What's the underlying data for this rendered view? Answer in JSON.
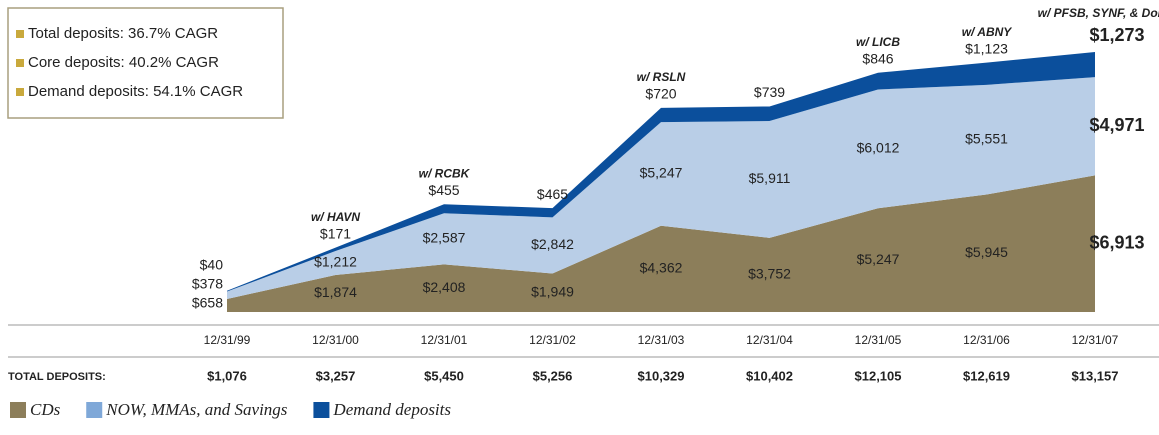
{
  "chart_data": {
    "type": "stacked_area",
    "x": [
      "12/31/99",
      "12/31/00",
      "12/31/01",
      "12/31/02",
      "12/31/03",
      "12/31/04",
      "12/31/05",
      "12/31/06",
      "12/31/07"
    ],
    "series": [
      {
        "name": "CDs",
        "color": "#8c7e5a",
        "values": [
          658,
          1874,
          2408,
          1949,
          4362,
          3752,
          5247,
          5945,
          6913
        ],
        "value_labels": [
          "$658",
          "$1,874",
          "$2,408",
          "$1,949",
          "$4,362",
          "$3,752",
          "$5,247",
          "$5,945",
          "$6,913"
        ]
      },
      {
        "name": "NOW, MMAs, and Savings",
        "color": "#b9cee7",
        "values": [
          378,
          1212,
          2587,
          2842,
          5247,
          5911,
          6012,
          5551,
          4971
        ],
        "value_labels": [
          "$378",
          "$1,212",
          "$2,587",
          "$2,842",
          "$5,247",
          "$5,911",
          "$6,012",
          "$5,551",
          "$4,971"
        ]
      },
      {
        "name": "Demand deposits",
        "color": "#0b4f9c",
        "values": [
          40,
          171,
          455,
          465,
          720,
          739,
          846,
          1123,
          1273
        ],
        "value_labels": [
          "$40",
          "$171",
          "$455",
          "$465",
          "$720",
          "$739",
          "$846",
          "$1,123",
          "$1,273"
        ]
      }
    ],
    "annotations": [
      null,
      "w/ HAVN",
      "w/ RCBK",
      null,
      "w/ RSLN",
      null,
      "w/ LICB",
      "w/ ABNY",
      "w/ PFSB, SYNF, & Doral"
    ],
    "cagr_legend": [
      "Total deposits: 36.7% CAGR",
      "Core deposits: 40.2% CAGR",
      "Demand deposits: 54.1% CAGR"
    ],
    "totals_label": "TOTAL DEPOSITS:",
    "totals": [
      1076,
      3257,
      5450,
      5256,
      10329,
      10402,
      12105,
      12619,
      13157
    ],
    "totals_labels": [
      "$1,076",
      "$3,257",
      "$5,450",
      "$5,256",
      "$10,329",
      "$10,402",
      "$12,105",
      "$12,619",
      "$13,157"
    ]
  }
}
